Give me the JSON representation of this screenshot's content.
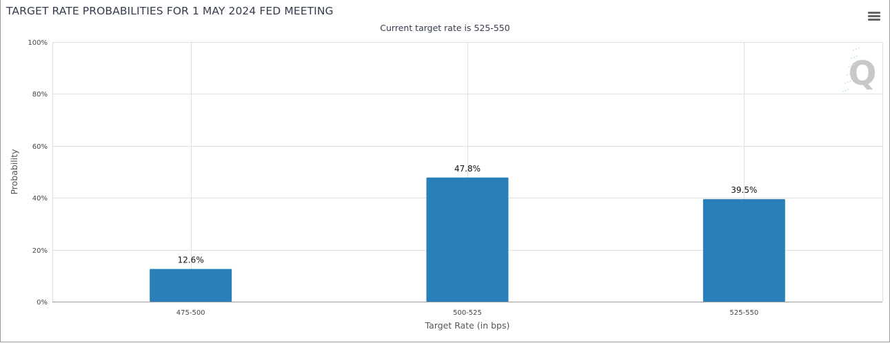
{
  "header": {
    "title": "TARGET RATE PROBABILITIES FOR 1 MAY 2024 FED MEETING",
    "subtitle": "Current target rate is 525-550"
  },
  "toolbar": {
    "menu_icon": "hamburger-menu-icon"
  },
  "watermark": {
    "text": "Q",
    "icon": "quikstrike-logo"
  },
  "colors": {
    "bar": "#2980b9",
    "grid": "#e0e0e0",
    "axis": "#999999",
    "title": "#333b4d"
  },
  "chart_data": {
    "type": "bar",
    "title": "TARGET RATE PROBABILITIES FOR 1 MAY 2024 FED MEETING",
    "subtitle": "Current target rate is 525-550",
    "categories": [
      "475-500",
      "500-525",
      "525-550"
    ],
    "values": [
      12.6,
      47.8,
      39.5
    ],
    "data_labels": [
      "12.6%",
      "47.8%",
      "39.5%"
    ],
    "xlabel": "Target Rate (in bps)",
    "ylabel": "Probability",
    "ylim": [
      0,
      100
    ],
    "yticks": [
      0,
      20,
      40,
      60,
      80,
      100
    ],
    "ytick_labels": [
      "0%",
      "20%",
      "40%",
      "60%",
      "80%",
      "100%"
    ],
    "grid": true,
    "legend": "none"
  }
}
